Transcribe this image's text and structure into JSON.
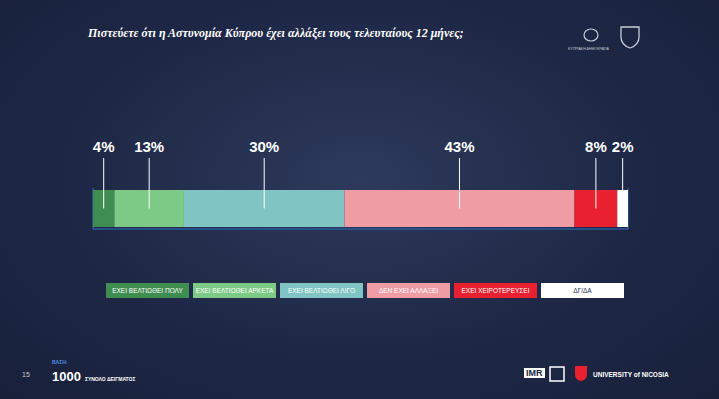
{
  "chart_data": {
    "type": "bar",
    "title": "Πιστεύετε ότι η Αστυνομία Κύπρου έχει αλλάξει τους τελευταίους 12 μήνες;",
    "orientation": "horizontal",
    "stacked": true,
    "data_labels": true,
    "tick_labels": false,
    "grid": true,
    "categories": [
      null
    ],
    "xlim": [
      0,
      100
    ],
    "xticks": [
      0,
      50,
      100
    ],
    "series": [
      {
        "name": "ΕΧΕΙ ΒΕΛΤΙΩΘΕΙ ΠΟΛΥ",
        "color": "#3f8d51",
        "values": [
          4
        ],
        "value_labels": [
          "4%"
        ]
      },
      {
        "name": "ΕΧΕΙ ΒΕΛΤΙΩΘΕΙ ΑΡΚΕΤΑ",
        "color": "#7dca86",
        "values": [
          13
        ],
        "value_labels": [
          "13%"
        ]
      },
      {
        "name": "ΕΧΕΙ ΒΕΛΤΙΩΘΕΙ ΛΙΓΟ",
        "color": "#80c5c3",
        "values": [
          30
        ],
        "value_labels": [
          "30%"
        ]
      },
      {
        "name": "ΔΕΝ ΕΧΕΙ ΑΛΛΑΞΕΙ",
        "color": "#f09ca5",
        "values": [
          43
        ],
        "value_labels": [
          "43%"
        ]
      },
      {
        "name": "ΕΧΕΙ ΧΕΙΡΟΤΕΡΕΥΣΕΙ",
        "color": "#e8202f",
        "values": [
          8
        ],
        "value_labels": [
          "8%"
        ]
      },
      {
        "name": "ΔΓ/ΔΑ",
        "color": "#ffffff",
        "values": [
          2
        ],
        "value_labels": [
          "2%"
        ]
      }
    ]
  },
  "header": {
    "logo_text": "ΚΥΠΡΙΑΚΗ ΔΗΜΟΚΡΑΤΙΑ"
  },
  "footer": {
    "page": "15",
    "base_label": "ΒΑΣΗ:",
    "base_value": "1000",
    "base_text": "ΣΥΝΟΛΟ ΔΕΙΓΜΑΤΟΣ",
    "logo_imr": "IMR",
    "logo_university": "UNIVERSITY of NICOSIA"
  }
}
